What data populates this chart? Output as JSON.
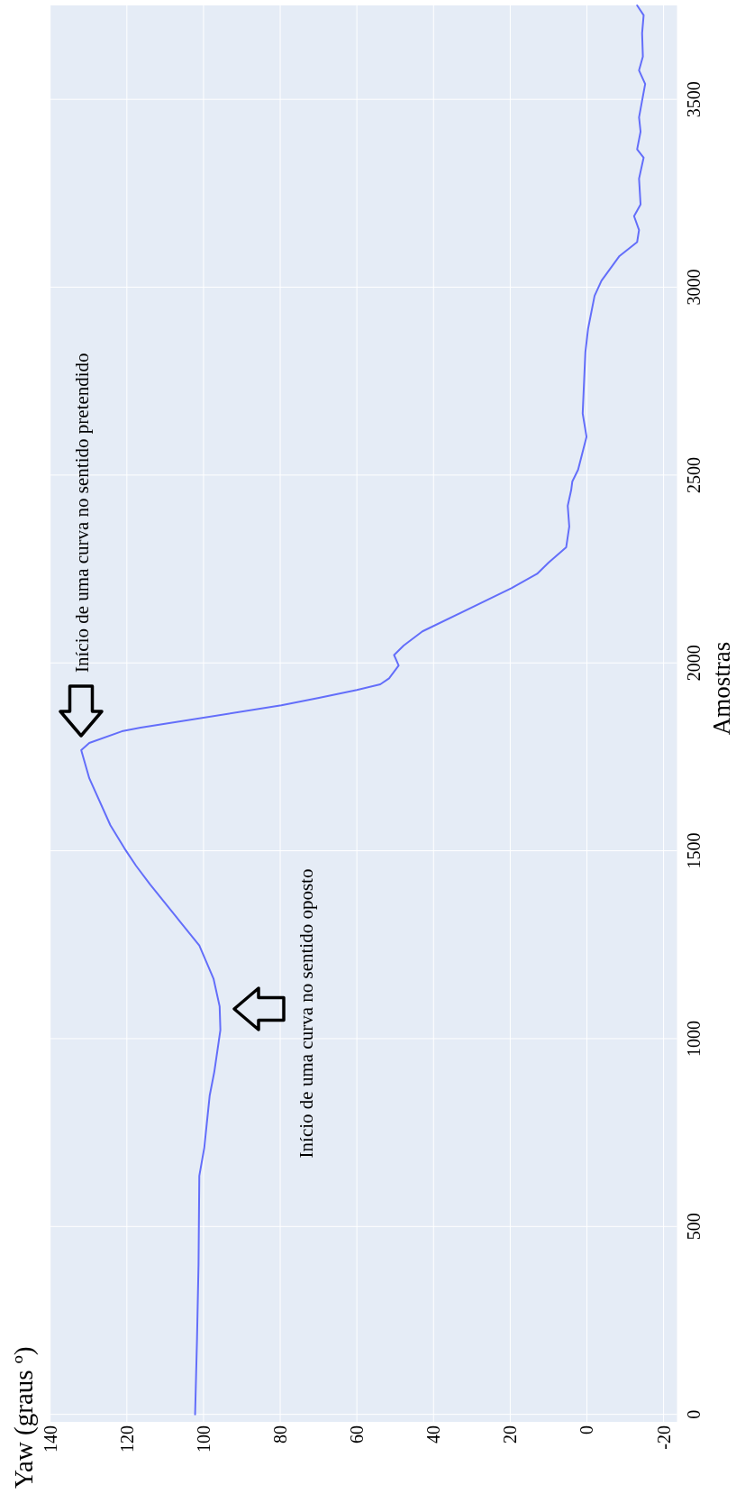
{
  "chart_data": {
    "type": "line",
    "title": "Yaw (graus º)",
    "ylabel": "Amostras",
    "xlim": [
      140,
      -23.5
    ],
    "xticks": [
      140,
      120,
      100,
      80,
      60,
      40,
      20,
      0,
      -20
    ],
    "ylim": [
      -20,
      3750
    ],
    "yticks": [
      0,
      500,
      1000,
      1500,
      2000,
      2500,
      3000,
      3500
    ],
    "grid": true,
    "series": [
      {
        "color": "#636efa",
        "x": [
          102.2,
          101.7,
          101.3,
          101.1,
          99.8,
          98.4,
          97.2,
          95.6,
          95.8,
          97.4,
          101.1,
          106,
          113.9,
          117.6,
          120.6,
          124.3,
          129.8,
          131.9,
          129.8,
          121.3,
          116.4,
          79.7,
          69.9,
          60,
          53.9,
          51.6,
          49.1,
          50.3,
          47.8,
          42.9,
          19.7,
          13,
          10,
          5.4,
          4.6,
          5,
          4.1,
          3.8,
          2.3,
          0.1,
          1.1,
          0.4,
          -0.3,
          -2,
          -3.8,
          -8.5,
          -13.1,
          -13.6,
          -12.3,
          -14,
          -13.6,
          -14.8,
          -13.1,
          -14,
          -13.6,
          -15.2,
          -13.6,
          -14.6,
          -14.4,
          -14.8,
          -13.1
        ],
        "values": [
          0,
          200,
          400,
          635,
          710,
          848,
          911,
          1023,
          1086,
          1160,
          1248,
          1310,
          1410,
          1460,
          1506,
          1568,
          1693,
          1768,
          1787,
          1818,
          1828,
          1887,
          1907,
          1928,
          1943,
          1959,
          1993,
          2021,
          2046,
          2084,
          2199,
          2237,
          2267,
          2308,
          2363,
          2418,
          2460,
          2483,
          2514,
          2602,
          2664,
          2827,
          2889,
          2977,
          3017,
          3083,
          3120,
          3152,
          3189,
          3220,
          3289,
          3345,
          3367,
          3414,
          3452,
          3541,
          3577,
          3614,
          3676,
          3724,
          3750
        ]
      }
    ],
    "annotations": [
      "Início de uma curva no sentido pretendido",
      "Início de uma curva no sentido oposto"
    ]
  }
}
